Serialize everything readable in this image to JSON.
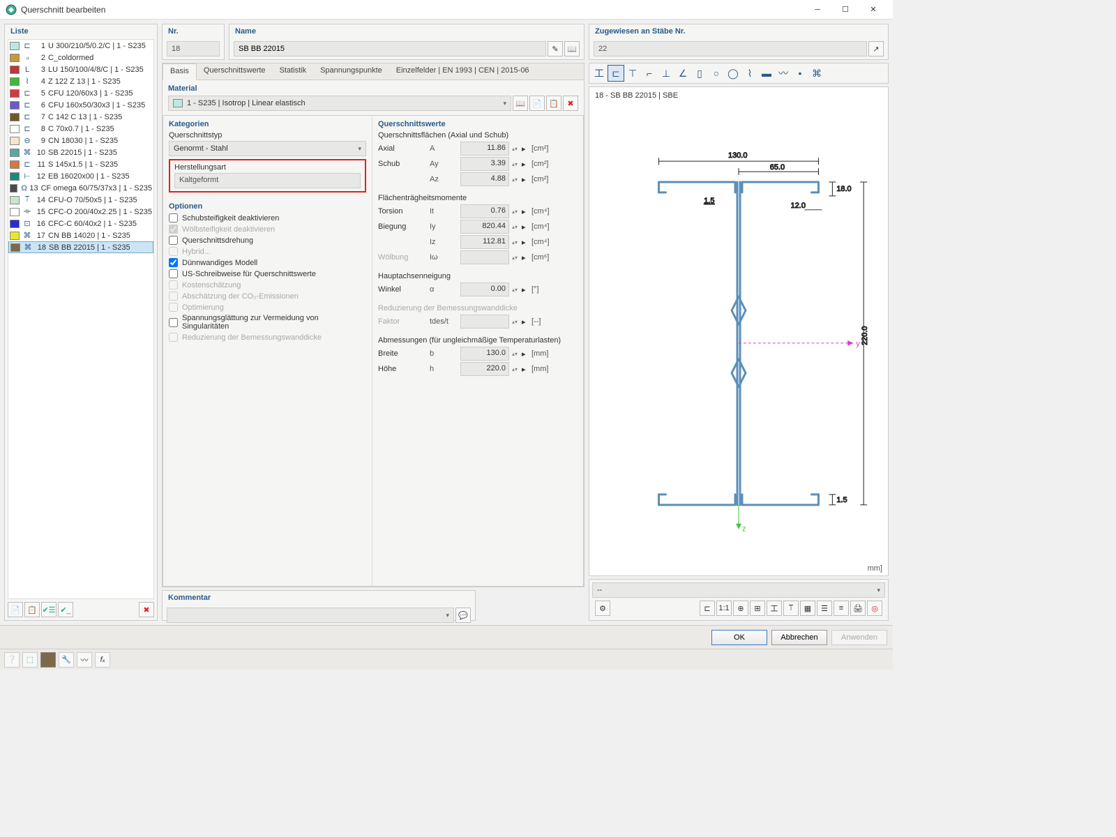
{
  "window": {
    "title": "Querschnitt bearbeiten"
  },
  "sidebar": {
    "header": "Liste",
    "items": [
      {
        "n": 1,
        "swatch": "#bde8e0",
        "glyph": "⊏",
        "label": "U 300/210/5/0.2/C | 1 - S235"
      },
      {
        "n": 2,
        "swatch": "#c49a3a",
        "glyph": "⟓",
        "label": "C_coldormed"
      },
      {
        "n": 3,
        "swatch": "#b83a3a",
        "glyph": "L",
        "label": "LU 150/100/4/8/C | 1 - S235"
      },
      {
        "n": 4,
        "swatch": "#3fb83a",
        "glyph": "⌇",
        "label": "Z 122 Z 13 | 1 - S235"
      },
      {
        "n": 5,
        "swatch": "#d63a3a",
        "glyph": "⊏",
        "label": "CFU 120/60x3 | 1 - S235"
      },
      {
        "n": 6,
        "swatch": "#6a5acd",
        "glyph": "⊏",
        "label": "CFU 160x50/30x3 | 1 - S235"
      },
      {
        "n": 7,
        "swatch": "#6b5a2a",
        "glyph": "⊏",
        "label": "C 142 C 13 | 1 - S235"
      },
      {
        "n": 8,
        "swatch": "#ffffff",
        "glyph": "⊏",
        "label": "C 70x0.7 | 1 - S235"
      },
      {
        "n": 9,
        "swatch": "#f5e6c8",
        "glyph": "⊖",
        "label": "CN 18030 | 1 - S235"
      },
      {
        "n": 10,
        "swatch": "#5aa8a0",
        "glyph": "⌘",
        "label": "SB 22015 | 1 - S235"
      },
      {
        "n": 11,
        "swatch": "#d67a3a",
        "glyph": "⊏",
        "label": "S 145x1.5 | 1 - S235"
      },
      {
        "n": 12,
        "swatch": "#1a8a7a",
        "glyph": "⊢",
        "label": "EB 16020x00 | 1 - S235"
      },
      {
        "n": 13,
        "swatch": "#4a4a4a",
        "glyph": "Ω",
        "label": "CF omega 60/75/37x3 | 1 - S235"
      },
      {
        "n": 14,
        "swatch": "#c8e6c8",
        "glyph": "⟙",
        "label": "CFU-O 70/50x5 | 1 - S235"
      },
      {
        "n": 15,
        "swatch": "#ffffff",
        "glyph": "⟛",
        "label": "CFC-O 200/40x2.25 | 1 - S235"
      },
      {
        "n": 16,
        "swatch": "#2a2ad6",
        "glyph": "⊡",
        "label": "CFC-C 60/40x2 | 1 - S235"
      },
      {
        "n": 17,
        "swatch": "#e8e82a",
        "glyph": "⌘",
        "label": "CN BB 14020 | 1 - S235"
      },
      {
        "n": 18,
        "swatch": "#7a6a4a",
        "glyph": "⌘",
        "label": "SB BB 22015 | 1 - S235",
        "selected": true
      }
    ]
  },
  "header_fields": {
    "nr_label": "Nr.",
    "nr_value": "18",
    "name_label": "Name",
    "name_value": "SB BB 22015",
    "assigned_label": "Zugewiesen an Stäbe Nr.",
    "assigned_value": "22"
  },
  "tabs": [
    "Basis",
    "Querschnittswerte",
    "Statistik",
    "Spannungspunkte",
    "Einzelfelder | EN 1993 | CEN | 2015-06"
  ],
  "material": {
    "label": "Material",
    "value": "1 - S235 | Isotrop | Linear elastisch",
    "swatch": "#bde8e0"
  },
  "kategorien": {
    "label": "Kategorien",
    "qtype_label": "Querschnittstyp",
    "qtype_value": "Genormt - Stahl",
    "herst_label": "Herstellungsart",
    "herst_value": "Kaltgeformt"
  },
  "optionen": {
    "label": "Optionen",
    "items": [
      {
        "label": "Schubsteifigkeit deaktivieren",
        "checked": false,
        "disabled": false
      },
      {
        "label": "Wölbsteifigkeit deaktivieren",
        "checked": true,
        "disabled": true
      },
      {
        "label": "Querschnittsdrehung",
        "checked": false,
        "disabled": false
      },
      {
        "label": "Hybrid...",
        "checked": false,
        "disabled": true
      },
      {
        "label": "Dünnwandiges Modell",
        "checked": true,
        "disabled": false
      },
      {
        "label": "US-Schreibweise für Querschnittswerte",
        "checked": false,
        "disabled": false
      },
      {
        "label": "Kostenschätzung",
        "checked": false,
        "disabled": true
      },
      {
        "label": "Abschätzung der CO₂-Emissionen",
        "checked": false,
        "disabled": true
      },
      {
        "label": "Optimierung",
        "checked": false,
        "disabled": true
      },
      {
        "label": "Spannungsglättung zur Vermeidung von Singularitäten",
        "checked": false,
        "disabled": false
      },
      {
        "label": "Reduzierung der Bemessungswanddicke",
        "checked": false,
        "disabled": true
      }
    ]
  },
  "querschnittswerte": {
    "label": "Querschnittswerte",
    "group1_label": "Querschnittsflächen (Axial und Schub)",
    "rows1": [
      {
        "name": "Axial",
        "sym": "A",
        "val": "11.86",
        "unit": "[cm²]"
      },
      {
        "name": "Schub",
        "sym": "Ay",
        "val": "3.39",
        "unit": "[cm²]"
      },
      {
        "name": "",
        "sym": "Az",
        "val": "4.88",
        "unit": "[cm²]"
      }
    ],
    "group2_label": "Flächenträgheitsmomente",
    "rows2": [
      {
        "name": "Torsion",
        "sym": "It",
        "val": "0.76",
        "unit": "[cm⁴]"
      },
      {
        "name": "Biegung",
        "sym": "Iy",
        "val": "820.44",
        "unit": "[cm⁴]"
      },
      {
        "name": "",
        "sym": "Iz",
        "val": "112.81",
        "unit": "[cm⁴]"
      },
      {
        "name": "Wölbung",
        "sym": "Iω",
        "val": "",
        "unit": "[cm⁶]",
        "disabled": true
      }
    ],
    "angle_label": "Hauptachsenneigung",
    "angle_rows": [
      {
        "name": "Winkel",
        "sym": "α",
        "val": "0.00",
        "unit": "[°]"
      }
    ],
    "reduce_label": "Reduzierung der Bemessungswanddicke",
    "reduce_rows": [
      {
        "name": "Faktor",
        "sym": "tdes/t",
        "val": "",
        "unit": "[--]",
        "disabled": true
      }
    ],
    "dim_label": "Abmessungen (für ungleichmäßige Temperaturlasten)",
    "dim_rows": [
      {
        "name": "Breite",
        "sym": "b",
        "val": "130.0",
        "unit": "[mm]"
      },
      {
        "name": "Höhe",
        "sym": "h",
        "val": "220.0",
        "unit": "[mm]"
      }
    ]
  },
  "preview": {
    "title": "18 - SB BB 22015 | SBE",
    "section_color": "#5a8fb8",
    "dim_color": "#222",
    "axis_y_color": "#d63ad6",
    "axis_z_color": "#3ac83a",
    "dims": {
      "width_total": "130.0",
      "flange_half": "65.0",
      "lip_top": "18.0",
      "lip_inner": "12.0",
      "thickness": "1.5",
      "thickness_bot": "1.5",
      "height": "220.0"
    },
    "unit_label": "mm]",
    "bottom_dropdown": "--"
  },
  "kommentar": {
    "label": "Kommentar",
    "value": ""
  },
  "buttons": {
    "ok": "OK",
    "cancel": "Abbrechen",
    "apply": "Anwenden"
  }
}
